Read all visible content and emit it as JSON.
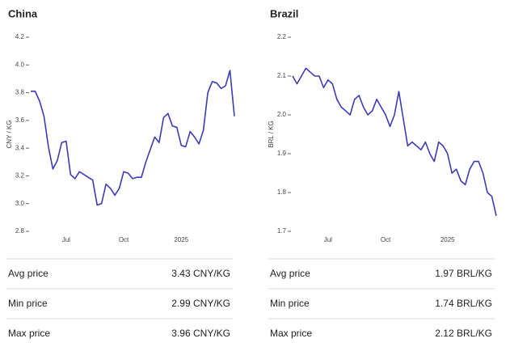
{
  "chart_data": [
    {
      "type": "line",
      "title": "China",
      "ylabel": "CNY / KG",
      "color": "#3b3bb5",
      "categories": [
        null,
        null,
        null,
        null,
        null,
        null,
        null,
        null,
        "Jul",
        null,
        null,
        null,
        null,
        null,
        null,
        null,
        null,
        null,
        null,
        null,
        null,
        "Oct",
        null,
        null,
        null,
        null,
        null,
        null,
        null,
        null,
        null,
        null,
        null,
        null,
        "2025",
        null,
        null,
        null,
        null,
        null,
        null,
        null,
        null,
        null,
        null,
        null,
        null
      ],
      "values": [
        3.81,
        3.81,
        3.74,
        3.63,
        3.41,
        3.25,
        3.31,
        3.44,
        3.45,
        3.21,
        3.18,
        3.23,
        3.21,
        3.19,
        3.17,
        2.99,
        3.0,
        3.14,
        3.11,
        3.06,
        3.11,
        3.23,
        3.22,
        3.18,
        3.19,
        3.19,
        3.3,
        3.39,
        3.48,
        3.44,
        3.62,
        3.65,
        3.56,
        3.55,
        3.42,
        3.41,
        3.52,
        3.48,
        3.43,
        3.53,
        3.8,
        3.88,
        3.87,
        3.83,
        3.85,
        3.96,
        3.63
      ],
      "ylim": [
        2.8,
        4.2
      ],
      "yticks": [
        2.8,
        {
          "value": 3,
          "label": "3.0"
        },
        3.2,
        3.4,
        3.6,
        3.8,
        {
          "value": 4,
          "label": "4.0"
        },
        4.2
      ]
    },
    {
      "type": "line",
      "title": "Brazil",
      "ylabel": "BRL / KG",
      "color": "#3b3bb5",
      "categories": [
        null,
        null,
        null,
        null,
        null,
        null,
        null,
        null,
        "Jul",
        null,
        null,
        null,
        null,
        null,
        null,
        null,
        null,
        null,
        null,
        null,
        null,
        "Oct",
        null,
        null,
        null,
        null,
        null,
        null,
        null,
        null,
        null,
        null,
        null,
        null,
        null,
        "2025",
        null,
        null,
        null,
        null,
        null,
        null,
        null,
        null,
        null,
        null,
        null
      ],
      "values": [
        2.1,
        2.08,
        2.1,
        2.12,
        2.11,
        2.1,
        2.1,
        2.07,
        2.09,
        2.08,
        2.04,
        2.02,
        2.01,
        2.0,
        2.04,
        2.05,
        2.02,
        2.0,
        2.01,
        2.04,
        2.02,
        2.0,
        1.97,
        2.0,
        2.06,
        1.99,
        1.92,
        1.93,
        1.92,
        1.91,
        1.93,
        1.9,
        1.88,
        1.93,
        1.92,
        1.9,
        1.85,
        1.86,
        1.83,
        1.82,
        1.86,
        1.88,
        1.88,
        1.85,
        1.8,
        1.79,
        1.74
      ],
      "ylim": [
        1.7,
        2.2
      ],
      "yticks": [
        1.7,
        1.8,
        1.9,
        {
          "value": 2,
          "label": "2.0"
        },
        2.1,
        2.2
      ]
    }
  ],
  "stats": [
    [
      {
        "label": "Avg price",
        "value": "3.43 CNY/KG"
      },
      {
        "label": "Min price",
        "value": "2.99 CNY/KG"
      },
      {
        "label": "Max price",
        "value": "3.96 CNY/KG"
      }
    ],
    [
      {
        "label": "Avg price",
        "value": "1.97 BRL/KG"
      },
      {
        "label": "Min price",
        "value": "1.74 BRL/KG"
      },
      {
        "label": "Max price",
        "value": "2.12 BRL/KG"
      }
    ]
  ]
}
